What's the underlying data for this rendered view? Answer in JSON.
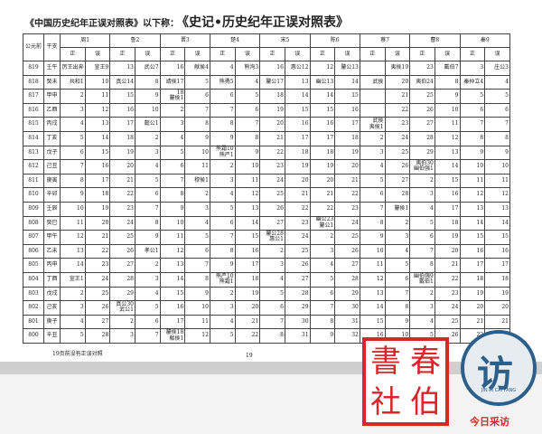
{
  "title": {
    "prefix": "《中国历史纪年正误对照表》以下称：",
    "main": "《史记•历史纪年正误对照表》"
  },
  "table": {
    "col_year": "公元前",
    "col_ganzhi": "干支",
    "sub_right": "正",
    "sub_wrong": "误",
    "states": [
      "周1",
      "鲁2",
      "晋3",
      "楚4",
      "宋5",
      "陈6",
      "蔡7",
      "曹8",
      "秦9"
    ],
    "rows": [
      {
        "year": "819",
        "gz": "壬午",
        "cells": [
          "厉王出奔",
          "宣王9",
          "13",
          "武公7",
          "16",
          "献侯4",
          "4",
          "熊洵3",
          "16",
          "惠公12",
          "12",
          "釐公13",
          "",
          "夷侯19",
          "23",
          "戴伯7",
          "3",
          "庄公3"
        ]
      },
      {
        "year": "818",
        "gz": "癸未",
        "cells": [
          "共和1",
          "10",
          "真公14",
          "8",
          "靖侯17",
          "5",
          "熊勇5",
          "4",
          "釐公17",
          "13",
          "幽公13",
          "14",
          "武侯",
          "20",
          "夷伯24",
          "8",
          "秦仲立4",
          "4"
        ]
      },
      {
        "year": "817",
        "gz": "甲申",
        "cells": [
          "2",
          "11",
          "15",
          "9",
          "18\n釐侯1",
          "6",
          "6",
          "5",
          "18",
          "14",
          "14",
          "15",
          "",
          "21",
          "25",
          "9",
          "5",
          "5"
        ]
      },
      {
        "year": "816",
        "gz": "乙酉",
        "cells": [
          "3",
          "12",
          "16",
          "10",
          "2",
          "7",
          "7",
          "6",
          "19",
          "15",
          "15",
          "16",
          "",
          "22",
          "26",
          "10",
          "6",
          "6"
        ]
      },
      {
        "year": "815",
        "gz": "丙戌",
        "cells": [
          "4",
          "13",
          "17",
          "懿公1",
          "3",
          "8",
          "8",
          "7",
          "20",
          "16",
          "16",
          "17",
          "武侯\n夷侯1",
          "23",
          "27",
          "11",
          "7",
          "7"
        ]
      },
      {
        "year": "814",
        "gz": "丁亥",
        "cells": [
          "5",
          "14",
          "18",
          "2",
          "4",
          "9",
          "9",
          "8",
          "21",
          "17",
          "17",
          "18",
          "2",
          "24",
          "28",
          "12",
          "8",
          "8"
        ]
      },
      {
        "year": "813",
        "gz": "戊子",
        "cells": [
          "6",
          "15",
          "19",
          "3",
          "5",
          "10",
          "熊霜10\n熊严1",
          "9",
          "22",
          "18",
          "18",
          "19",
          "3",
          "25",
          "29",
          "13",
          "9",
          "9"
        ]
      },
      {
        "year": "812",
        "gz": "己丑",
        "cells": [
          "7",
          "16",
          "20",
          "4",
          "6",
          "11",
          "2",
          "10",
          "23",
          "19",
          "19",
          "20",
          "4",
          "26",
          "夷伯30\n幽伯强1",
          "14",
          "10",
          "10"
        ]
      },
      {
        "year": "811",
        "gz": "庚寅",
        "cells": [
          "8",
          "17",
          "21",
          "5",
          "7",
          "穆侯1",
          "3",
          "11",
          "24",
          "20",
          "20",
          "21",
          "5",
          "27",
          "2",
          "15",
          "11",
          "11"
        ]
      },
      {
        "year": "810",
        "gz": "辛卯",
        "cells": [
          "9",
          "18",
          "22",
          "6",
          "8",
          "2",
          "4",
          "12",
          "25",
          "21",
          "21",
          "22",
          "6",
          "28",
          "3",
          "16",
          "12",
          "12"
        ]
      },
      {
        "year": "809",
        "gz": "壬辰",
        "cells": [
          "10",
          "19",
          "23",
          "7",
          "9",
          "3",
          "5",
          "13",
          "26",
          "22",
          "22",
          "23",
          "7",
          "釐侯1",
          "4",
          "17",
          "13",
          "13"
        ]
      },
      {
        "year": "808",
        "gz": "癸巳",
        "cells": [
          "11",
          "20",
          "24",
          "8",
          "10",
          "4",
          "6",
          "14",
          "27",
          "23",
          "幽公23\n釐公1",
          "24",
          "8",
          "2",
          "5",
          "18",
          "14",
          "14"
        ]
      },
      {
        "year": "807",
        "gz": "甲午",
        "cells": [
          "12",
          "21",
          "25",
          "9",
          "11",
          "5",
          "7",
          "15",
          "釐公28\n惠公1",
          "24",
          "2",
          "25",
          "9",
          "3",
          "6",
          "19",
          "15",
          "15"
        ]
      },
      {
        "year": "806",
        "gz": "乙未",
        "cells": [
          "13",
          "22",
          "26",
          "孝公1",
          "12",
          "6",
          "8",
          "16",
          "2",
          "25",
          "3",
          "26",
          "10",
          "4",
          "7",
          "20",
          "16",
          "16"
        ]
      },
      {
        "year": "805",
        "gz": "丙申",
        "cells": [
          "14",
          "23",
          "27",
          "2",
          "13",
          "7",
          "9",
          "17",
          "3",
          "26",
          "4",
          "27",
          "11",
          "5",
          "8",
          "21",
          "17",
          "17"
        ]
      },
      {
        "year": "804",
        "gz": "丁酉",
        "cells": [
          "宣王1",
          "24",
          "28",
          "3",
          "14",
          "8",
          "熊严10\n熊霜1",
          "18",
          "4",
          "27",
          "5",
          "28",
          "12",
          "6",
          "幽伯强9\n戴伯1",
          "22",
          "18",
          "18"
        ]
      },
      {
        "year": "803",
        "gz": "戊戌",
        "cells": [
          "2",
          "25",
          "29",
          "4",
          "15",
          "9",
          "2",
          "19",
          "5",
          "28",
          "6",
          "29",
          "13",
          "7",
          "2",
          "23",
          "19",
          "19"
        ]
      },
      {
        "year": "802",
        "gz": "己亥",
        "cells": [
          "3",
          "26",
          "真公30\n武公1",
          "5",
          "16",
          "10",
          "3",
          "20",
          "6",
          "29",
          "7",
          "30",
          "14",
          "8",
          "3",
          "24",
          "20",
          "20"
        ]
      },
      {
        "year": "801",
        "gz": "庚子",
        "cells": [
          "4",
          "27",
          "2",
          "6",
          "17",
          "11",
          "4",
          "21",
          "7",
          "30",
          "8",
          "31",
          "15",
          "9",
          "4",
          "25",
          "21",
          "21"
        ]
      },
      {
        "year": "800",
        "gz": "辛丑",
        "cells": [
          "5",
          "28",
          "3",
          "7",
          "釐侯18\n献侯1",
          "12",
          "5",
          "22",
          "8",
          "31",
          "9",
          "32",
          "16",
          "10",
          "5",
          "26",
          "22",
          "22"
        ]
      }
    ]
  },
  "footnote": "19页前没有正误对照",
  "page_number": "19",
  "seal": {
    "chars": [
      "春",
      "書",
      "伯",
      "社"
    ],
    "color": "#d8262a"
  },
  "logo": {
    "glyph": "访",
    "romanized": "JIN RI CAI FANG",
    "caption": "今日采访",
    "color": "#2d5f8b",
    "caption_color": "#d8262a"
  }
}
